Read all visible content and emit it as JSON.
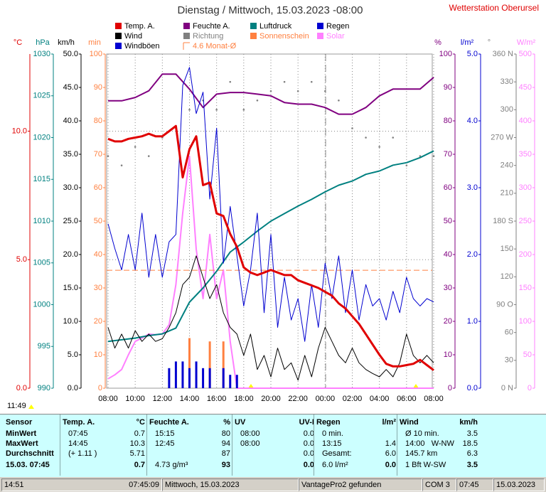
{
  "header": {
    "title": "Dienstag / Mittwoch, 15.03.2023  -08:00",
    "station": "Wetterstation Oberursel"
  },
  "chart_data": {
    "type": "line",
    "x_labels": [
      "08:00",
      "10:00",
      "12:00",
      "14:00",
      "16:00",
      "18:00",
      "20:00",
      "22:00",
      "00:00",
      "02:00",
      "04:00",
      "06:00",
      "08:00"
    ],
    "grid": true,
    "axes": {
      "temp": {
        "unit": "°C",
        "color": "#e00000",
        "lim": [
          0,
          13
        ],
        "ticks": [
          {
            "value": 0,
            "label": "0.0"
          },
          {
            "value": 5,
            "label": "5.0"
          },
          {
            "value": 10,
            "label": "10.0"
          }
        ]
      },
      "press": {
        "unit": "hPa",
        "color": "#008080",
        "lim": [
          990,
          1030
        ],
        "ticks": [
          990,
          995,
          1000,
          1005,
          1010,
          1015,
          1020,
          1025,
          1030
        ]
      },
      "wind": {
        "unit": "km/h",
        "color": "#000000",
        "lim": [
          0,
          50
        ],
        "ticks": [
          {
            "value": 0,
            "label": "0.0"
          },
          {
            "value": 5,
            "label": "5.0"
          },
          {
            "value": 10,
            "label": "10.0"
          },
          {
            "value": 15,
            "label": "15.0"
          },
          {
            "value": 20,
            "label": "20.0"
          },
          {
            "value": 25,
            "label": "25.0"
          },
          {
            "value": 30,
            "label": "30.0"
          },
          {
            "value": 35,
            "label": "35.0"
          },
          {
            "value": 40,
            "label": "40.0"
          },
          {
            "value": 45,
            "label": "45.0"
          },
          {
            "value": 50,
            "label": "50.0"
          }
        ]
      },
      "min": {
        "unit": "min",
        "color": "#ff8040",
        "lim": [
          0,
          100
        ],
        "ticks": [
          0,
          10,
          20,
          30,
          40,
          50,
          60,
          70,
          80,
          90,
          100
        ]
      },
      "hum": {
        "unit": "%",
        "color": "#800080",
        "lim": [
          0,
          100
        ],
        "ticks": [
          0,
          10,
          20,
          30,
          40,
          50,
          60,
          70,
          80,
          90,
          100
        ]
      },
      "rain": {
        "unit": "l/m²",
        "color": "#0000d0",
        "lim": [
          0,
          5
        ],
        "ticks": [
          {
            "value": 0,
            "label": "0.0"
          },
          {
            "value": 1,
            "label": "1.0"
          },
          {
            "value": 2,
            "label": "2.0"
          },
          {
            "value": 3,
            "label": "3.0"
          },
          {
            "value": 4,
            "label": "4.0"
          },
          {
            "value": 5,
            "label": "5.0"
          }
        ]
      },
      "dir": {
        "unit": "°",
        "color": "#808080",
        "lim": [
          0,
          360
        ],
        "ticks": [
          {
            "value": 0,
            "label": "0 N"
          },
          30,
          60,
          {
            "value": 90,
            "label": "90 O"
          },
          120,
          150,
          {
            "value": 180,
            "label": "180 S"
          },
          210,
          240,
          {
            "value": 270,
            "label": "270 W"
          },
          300,
          330,
          {
            "value": 360,
            "label": "360 N"
          }
        ]
      },
      "solar": {
        "unit": "W/m²",
        "color": "#ff80ff",
        "lim": [
          0,
          500
        ],
        "ticks": [
          0,
          50,
          100,
          150,
          200,
          250,
          300,
          350,
          400,
          450,
          500
        ]
      }
    },
    "series": [
      {
        "name": "Temp. A.",
        "color": "#e00000",
        "axis": "temp",
        "style": "line",
        "values": [
          9.7,
          9.6,
          9.6,
          9.7,
          9.75,
          9.8,
          9.9,
          9.8,
          9.8,
          10.0,
          10.2,
          8.2,
          9.3,
          9.8,
          7.9,
          8.0,
          6.8,
          6.7,
          6.0,
          5.5,
          4.7,
          4.5,
          4.4,
          4.5,
          4.6,
          4.5,
          4.4,
          4.4,
          4.2,
          4.1,
          4.0,
          3.9,
          3.75,
          3.6,
          3.3,
          3.1,
          2.8,
          2.5,
          2.1,
          1.7,
          1.3,
          0.95,
          0.85,
          0.85,
          0.9,
          0.95,
          1.1,
          0.9,
          0.7
        ]
      },
      {
        "name": "Wind",
        "color": "#000000",
        "axis": "wind",
        "style": "line",
        "values": [
          9.1,
          6.0,
          8.1,
          6.0,
          8.6,
          7.0,
          8.1,
          7.0,
          7.4,
          9.1,
          11.3,
          15.5,
          16.6,
          19.8,
          16.6,
          13.4,
          15.5,
          11.3,
          9.1,
          8.1,
          4.9,
          8.1,
          2.8,
          4.9,
          1.7,
          6.0,
          2.8,
          3.8,
          1.2,
          4.9,
          1.7,
          6.0,
          9.1,
          7.0,
          4.9,
          3.8,
          6.0,
          3.8,
          2.8,
          2.2,
          1.7,
          2.8,
          1.7,
          3.8,
          8.1,
          4.9,
          3.8,
          4.9,
          3.8
        ]
      },
      {
        "name": "Windböen",
        "color": "#0000d0",
        "axis": "wind",
        "style": "line",
        "values": [
          24.6,
          20.9,
          17.7,
          23.0,
          17.7,
          26.2,
          16.6,
          23.0,
          16.6,
          21.9,
          23.0,
          45.3,
          48.0,
          41.1,
          44.3,
          28.3,
          38.9,
          18.7,
          27.2,
          19.8,
          12.3,
          17.7,
          26.2,
          11.3,
          23.0,
          9.1,
          16.6,
          10.2,
          13.4,
          7.0,
          15.5,
          9.1,
          18.7,
          13.4,
          19.8,
          11.3,
          17.7,
          10.2,
          15.5,
          12.3,
          13.4,
          10.2,
          14.5,
          11.3,
          16.6,
          13.4,
          12.3,
          13.4,
          12.9
        ]
      },
      {
        "name": "Feuchte A.",
        "color": "#800080",
        "axis": "hum",
        "style": "line",
        "values": [
          86,
          86,
          87,
          89,
          94,
          94,
          89.5,
          84,
          88,
          88.5,
          88.5,
          88,
          87.5,
          85.5,
          85,
          85,
          84,
          82,
          82,
          84,
          87.5,
          89.5,
          89.5,
          89.5,
          93
        ]
      },
      {
        "name": "Richtung",
        "color": "#808080",
        "axis": "dir",
        "style": "dots",
        "values": [
          250,
          240,
          260,
          250,
          270,
          280,
          300,
          310,
          300,
          330,
          300,
          310,
          320,
          330,
          320,
          330,
          320,
          310,
          280,
          270,
          260,
          270,
          240,
          250,
          250
        ]
      },
      {
        "name": "4.6 Monat-Ø",
        "color": "#ff8040",
        "axis": "min",
        "style": "hline",
        "values": [
          35.3
        ]
      },
      {
        "name": "Luftdruck",
        "color": "#008080",
        "axis": "press",
        "style": "line",
        "values": [
          995.6,
          995.8,
          996,
          996.3,
          996.5,
          997.2,
          1000.3,
          1002,
          1004,
          1006.3,
          1007.5,
          1008.8,
          1010,
          1010.9,
          1011.8,
          1012.6,
          1013.5,
          1014.3,
          1014.8,
          1015.6,
          1016,
          1016.7,
          1017,
          1017.6,
          1018.4
        ]
      },
      {
        "name": "Sonnenschein",
        "color": "#ff8040",
        "axis": "min",
        "style": "bars",
        "values": [
          0,
          0,
          0,
          0,
          0,
          0,
          0,
          0,
          0,
          0,
          0,
          0,
          15,
          0,
          0,
          14,
          0,
          14,
          0,
          0,
          0,
          0,
          0,
          0,
          0,
          0,
          0,
          0,
          0,
          0,
          0,
          0,
          0,
          0,
          0,
          0,
          0,
          0,
          0,
          0,
          0,
          0,
          0,
          0,
          0,
          0,
          0,
          0,
          0
        ]
      },
      {
        "name": "Regen",
        "color": "#0000d0",
        "axis": "rain",
        "style": "bars",
        "values": [
          0,
          0,
          0,
          0,
          0,
          0,
          0,
          0,
          0,
          0.3,
          0.4,
          0.4,
          0.3,
          0.4,
          0.3,
          0.3,
          0,
          0.3,
          0.2,
          0.2,
          0,
          0,
          0,
          0,
          0,
          0,
          0,
          0,
          0,
          0,
          0,
          0,
          0,
          0,
          0,
          0,
          0,
          0,
          0,
          0,
          0,
          0,
          0,
          0,
          0,
          0,
          0,
          0,
          0
        ]
      },
      {
        "name": "Solar",
        "color": "#ff80ff",
        "axis": "solar",
        "style": "line",
        "values": [
          14,
          20,
          28,
          50,
          70,
          75,
          81,
          80,
          81,
          95,
          155,
          262,
          347,
          208,
          134,
          230,
          134,
          177,
          70,
          0,
          0,
          0,
          0,
          0,
          0,
          0,
          0,
          0,
          0,
          0,
          0,
          0,
          0,
          0,
          0,
          0,
          0,
          0,
          0,
          0,
          0,
          0,
          0,
          0,
          0,
          0,
          0,
          0,
          0
        ]
      }
    ]
  },
  "marker_time": "11:49",
  "table": {
    "sensor": [
      "Sensor",
      "MinWert",
      "MaxWert",
      "Durchschnitt",
      "15.03. 07:45"
    ],
    "groups": [
      {
        "header": [
          "Temp. A.",
          "°C"
        ],
        "rows": [
          [
            "07:45",
            "0.7"
          ],
          [
            "14:45",
            "10.3"
          ],
          [
            "(+ 1.11 )",
            "5.71"
          ],
          [
            null,
            "0.7"
          ]
        ]
      },
      {
        "header": [
          "Feuchte A.",
          "%"
        ],
        "rows": [
          [
            "15:15",
            "80"
          ],
          [
            "12:45",
            "94"
          ],
          [
            null,
            "87"
          ],
          [
            "4.73 g/m³",
            "93"
          ]
        ]
      },
      {
        "header": [
          "UV",
          "UV-I"
        ],
        "rows": [
          [
            "08:00",
            "0.0"
          ],
          [
            "08:00",
            "0.0"
          ],
          [
            null,
            "0.0"
          ],
          [
            null,
            "0.0"
          ]
        ]
      },
      {
        "header": [
          "Regen",
          "l/m²"
        ],
        "rows": [
          [
            "0 min.",
            null
          ],
          [
            "13:15",
            "1.4"
          ],
          [
            "Gesamt:",
            "6.0"
          ],
          [
            "6.0 l/m²",
            "0.0"
          ]
        ]
      },
      {
        "header": [
          "Wind",
          "km/h"
        ],
        "rows": [
          [
            "Ø 10 min.",
            "3.5"
          ],
          [
            "14:00   W-NW",
            "18.5"
          ],
          [
            "145.7 km",
            "6.3"
          ],
          [
            "1 Bft W-SW",
            "3.5"
          ]
        ]
      }
    ]
  },
  "status": [
    "14:51",
    "07:45:09",
    "Mittwoch, 15.03.2023",
    "VantagePro2 gefunden",
    "COM 3",
    "07:45",
    "15.03.2023"
  ]
}
